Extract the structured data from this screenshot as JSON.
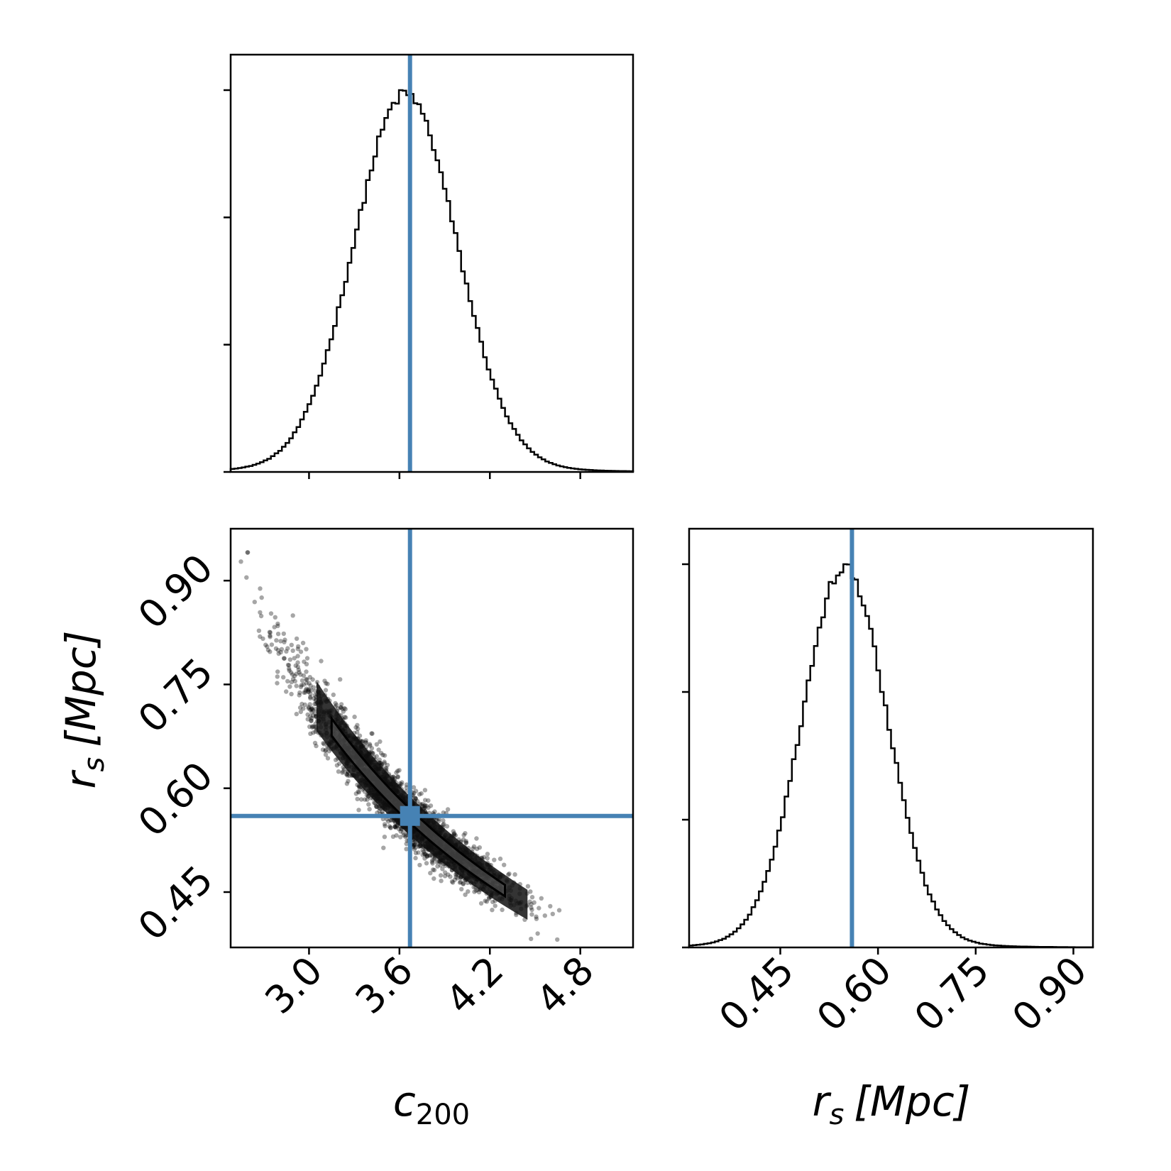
{
  "chart_data": {
    "type": "corner",
    "truth_color": "#4682b4",
    "truth": {
      "c200": 3.67,
      "rs": 0.56
    },
    "panels": [
      {
        "id": "hist-c200",
        "type": "histogram",
        "xlim": [
          2.48,
          5.15
        ],
        "x_ticks": [
          3.0,
          3.6,
          4.2,
          4.8
        ],
        "x_tick_labels_shown": false,
        "y_tick_labels_shown": false,
        "mean": 3.62,
        "std": 0.34,
        "truth_line": 3.67
      },
      {
        "id": "scatter-c200-rs",
        "type": "scatter",
        "xlim": [
          2.48,
          5.15
        ],
        "ylim": [
          0.37,
          0.975
        ],
        "x_ticks": [
          "3.0",
          "3.6",
          "4.2",
          "4.8"
        ],
        "y_ticks": [
          "0.45",
          "0.60",
          "0.75",
          "0.90"
        ],
        "xlabel_main": "c",
        "xlabel_sub": "200",
        "ylabel_var": "r",
        "ylabel_sub": "s",
        "ylabel_unit": "[Mpc]",
        "relation": "rs ≈ 0.56 · (c200 / 3.67)^-1.35",
        "truth_point": {
          "c200": 3.67,
          "rs": 0.56
        }
      },
      {
        "id": "hist-rs",
        "type": "histogram",
        "xlim": [
          0.31,
          0.93
        ],
        "x_ticks": [
          "0.45",
          "0.60",
          "0.75",
          "0.90"
        ],
        "y_tick_labels_shown": false,
        "mean": 0.545,
        "std": 0.065,
        "truth_line": 0.56,
        "xlabel_var": "r",
        "xlabel_sub": "s",
        "xlabel_unit": "[Mpc]"
      }
    ]
  }
}
